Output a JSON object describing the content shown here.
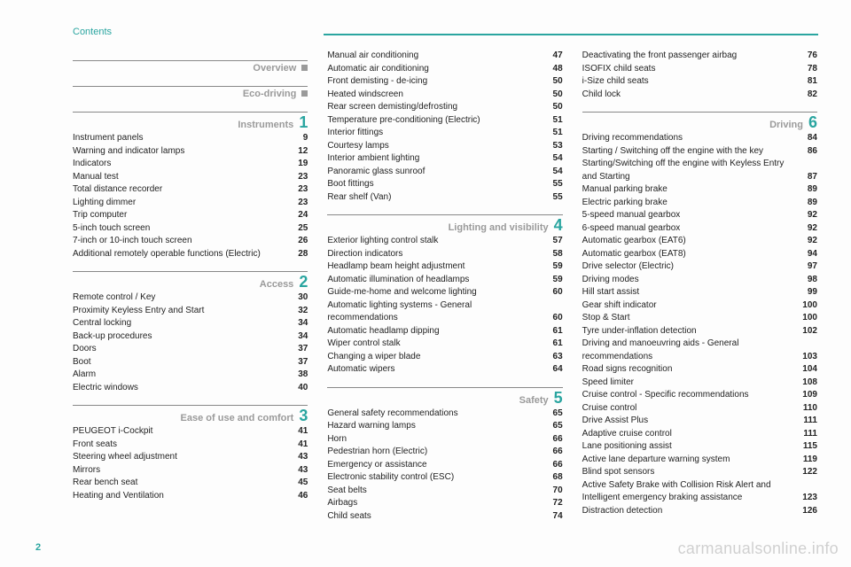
{
  "header": "Contents",
  "page_number": "2",
  "watermark": "carmanualsonline.info",
  "columns": [
    {
      "sections": [
        {
          "title": "Overview",
          "marker": "square",
          "entries": []
        },
        {
          "title": "Eco-driving",
          "marker": "square",
          "entries": []
        },
        {
          "title": "Instruments",
          "num": "1",
          "first_page": "9",
          "entries": [
            {
              "label": "Instrument panels",
              "page": "9"
            },
            {
              "label": "Warning and indicator lamps",
              "page": "12"
            },
            {
              "label": "Indicators",
              "page": "19"
            },
            {
              "label": "Manual test",
              "page": "23"
            },
            {
              "label": "Total distance recorder",
              "page": "23"
            },
            {
              "label": "Lighting dimmer",
              "page": "23"
            },
            {
              "label": "Trip computer",
              "page": "24"
            },
            {
              "label": "5-inch touch screen",
              "page": "25"
            },
            {
              "label": "7-inch or 10-inch touch screen",
              "page": "26"
            },
            {
              "label": "Additional remotely operable functions (Electric)",
              "page": "28"
            }
          ]
        },
        {
          "title": "Access",
          "num": "2",
          "first_page": "30",
          "entries": [
            {
              "label": "Remote control / Key",
              "page": "30"
            },
            {
              "label": "Proximity Keyless Entry and Start",
              "page": "32"
            },
            {
              "label": "Central locking",
              "page": "34"
            },
            {
              "label": "Back-up procedures",
              "page": "34"
            },
            {
              "label": "Doors",
              "page": "37"
            },
            {
              "label": "Boot",
              "page": "37"
            },
            {
              "label": "Alarm",
              "page": "38"
            },
            {
              "label": "Electric windows",
              "page": "40"
            }
          ]
        },
        {
          "title": "Ease of use and comfort",
          "num": "3",
          "first_page": "41",
          "entries": [
            {
              "label": "PEUGEOT i-Cockpit",
              "page": "41"
            },
            {
              "label": "Front seats",
              "page": "41"
            },
            {
              "label": "Steering wheel adjustment",
              "page": "43"
            },
            {
              "label": "Mirrors",
              "page": "43"
            },
            {
              "label": "Rear bench seat",
              "page": "45"
            },
            {
              "label": "Heating and Ventilation",
              "page": "46"
            }
          ]
        }
      ]
    },
    {
      "sections": [
        {
          "title": "",
          "entries": [
            {
              "label": "Manual air conditioning",
              "page": "47"
            },
            {
              "label": "Automatic air conditioning",
              "page": "48"
            },
            {
              "label": "Front demisting - de-icing",
              "page": "50"
            },
            {
              "label": "Heated windscreen",
              "page": "50"
            },
            {
              "label": "Rear screen demisting/defrosting",
              "page": "50"
            },
            {
              "label": "Temperature pre-conditioning (Electric)",
              "page": "51"
            },
            {
              "label": "Interior fittings",
              "page": "51"
            },
            {
              "label": "Courtesy lamps",
              "page": "53"
            },
            {
              "label": "Interior ambient lighting",
              "page": "54"
            },
            {
              "label": "Panoramic glass sunroof",
              "page": "54"
            },
            {
              "label": "Boot fittings",
              "page": "55"
            },
            {
              "label": "Rear shelf (Van)",
              "page": "55"
            }
          ]
        },
        {
          "title": "Lighting and visibility",
          "num": "4",
          "first_page": "57",
          "entries": [
            {
              "label": "Exterior lighting control stalk",
              "page": "57"
            },
            {
              "label": "Direction indicators",
              "page": "58"
            },
            {
              "label": "Headlamp beam height adjustment",
              "page": "59"
            },
            {
              "label": "Automatic illumination of headlamps",
              "page": "59"
            },
            {
              "label": "Guide-me-home and welcome lighting",
              "page": "60"
            },
            {
              "label": "Automatic lighting systems - General recommendations",
              "page": "60"
            },
            {
              "label": "Automatic headlamp dipping",
              "page": "61"
            },
            {
              "label": "Wiper control stalk",
              "page": "61"
            },
            {
              "label": "Changing a wiper blade",
              "page": "63"
            },
            {
              "label": "Automatic wipers",
              "page": "64"
            }
          ]
        },
        {
          "title": "Safety",
          "num": "5",
          "first_page": "65",
          "entries": [
            {
              "label": "General safety recommendations",
              "page": "65"
            },
            {
              "label": "Hazard warning lamps",
              "page": "65"
            },
            {
              "label": "Horn",
              "page": "66"
            },
            {
              "label": "Pedestrian horn (Electric)",
              "page": "66"
            },
            {
              "label": "Emergency or assistance",
              "page": "66"
            },
            {
              "label": "Electronic stability control (ESC)",
              "page": "68"
            },
            {
              "label": "Seat belts",
              "page": "70"
            },
            {
              "label": "Airbags",
              "page": "72"
            },
            {
              "label": "Child seats",
              "page": "74"
            }
          ]
        }
      ]
    },
    {
      "sections": [
        {
          "title": "",
          "entries": [
            {
              "label": "Deactivating the front passenger airbag",
              "page": "76"
            },
            {
              "label": "ISOFIX child seats",
              "page": "78"
            },
            {
              "label": "i-Size child seats",
              "page": "81"
            },
            {
              "label": "Child lock",
              "page": "82"
            }
          ]
        },
        {
          "title": "Driving",
          "num": "6",
          "first_page": "84",
          "entries": [
            {
              "label": "Driving recommendations",
              "page": "84"
            },
            {
              "label": "Starting / Switching off the engine with the key",
              "page": "86"
            },
            {
              "label": "Starting/Switching off the engine with Keyless Entry and Starting",
              "page": "87"
            },
            {
              "label": "Manual parking brake",
              "page": "89"
            },
            {
              "label": "Electric parking brake",
              "page": "89"
            },
            {
              "label": "5-speed manual gearbox",
              "page": "92"
            },
            {
              "label": "6-speed manual gearbox",
              "page": "92"
            },
            {
              "label": "Automatic gearbox (EAT6)",
              "page": "92"
            },
            {
              "label": "Automatic gearbox (EAT8)",
              "page": "94"
            },
            {
              "label": "Drive selector (Electric)",
              "page": "97"
            },
            {
              "label": "Driving modes",
              "page": "98"
            },
            {
              "label": "Hill start assist",
              "page": "99"
            },
            {
              "label": "Gear shift indicator",
              "page": "100"
            },
            {
              "label": "Stop & Start",
              "page": "100"
            },
            {
              "label": "Tyre under-inflation detection",
              "page": "102"
            },
            {
              "label": "Driving and manoeuvring aids - General recommendations",
              "page": "103"
            },
            {
              "label": "Road signs recognition",
              "page": "104"
            },
            {
              "label": "Speed limiter",
              "page": "108"
            },
            {
              "label": "Cruise control - Specific recommendations",
              "page": "109"
            },
            {
              "label": "Cruise control",
              "page": "110"
            },
            {
              "label": "Drive Assist Plus",
              "page": "111"
            },
            {
              "label": "Adaptive cruise control",
              "page": "111"
            },
            {
              "label": "Lane positioning assist",
              "page": "115"
            },
            {
              "label": "Active lane departure warning system",
              "page": "119"
            },
            {
              "label": "Blind spot sensors",
              "page": "122"
            },
            {
              "label": "Active Safety Brake with Collision Risk Alert and Intelligent emergency braking assistance",
              "page": "123"
            },
            {
              "label": "Distraction detection",
              "page": "126"
            }
          ]
        }
      ]
    }
  ]
}
